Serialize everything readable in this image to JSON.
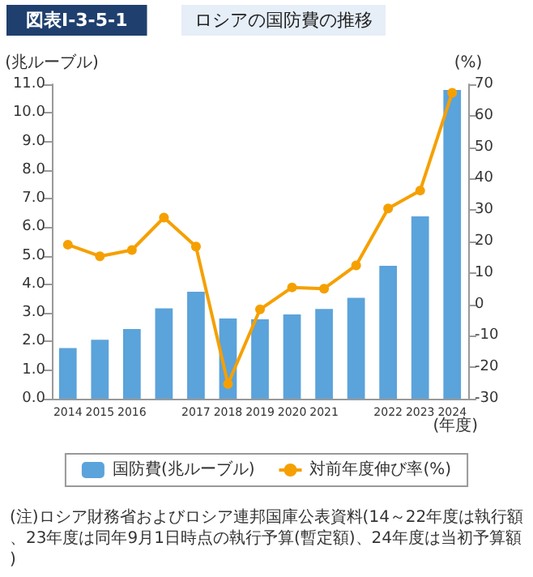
{
  "chart_data": {
    "type": "bar",
    "title": "図表Ⅰ-3-5-1",
    "subtitle": "ロシアの国防費の推移",
    "categories": [
      "2014",
      "2015",
      "2016",
      null,
      "2017",
      "2018",
      "2019",
      "2020",
      "2021",
      null,
      "2022",
      "2023",
      "2024"
    ],
    "xlabel": "(年度)",
    "ylabel": "(兆ルーブル)",
    "y2label": "(%)",
    "series": [
      {
        "name": "国防費(兆ルーブル)",
        "color": "#5ba3db",
        "values": [
          1.77,
          2.06,
          2.44,
          3.16,
          3.74,
          2.81,
          2.78,
          2.95,
          3.14,
          3.53,
          4.65,
          6.38,
          10.8
        ]
      },
      {
        "name": "対前年度伸び率(%)",
        "type": "line",
        "axis": "y2",
        "color": "#f5a000",
        "marker": "circle",
        "values": [
          19,
          15.3,
          17.3,
          27.6,
          18.4,
          -25.3,
          -1.6,
          5.4,
          5.0,
          12.4,
          30.5,
          36.2,
          67.3
        ]
      }
    ],
    "ylim": [
      0,
      11
    ],
    "yticks": [
      {
        "value": 0,
        "label": "0.0"
      },
      {
        "value": 1,
        "label": "1.0"
      },
      {
        "value": 2,
        "label": "2.0"
      },
      {
        "value": 3,
        "label": "3.0"
      },
      {
        "value": 4,
        "label": "4.0"
      },
      {
        "value": 5,
        "label": "5.0"
      },
      {
        "value": 6,
        "label": "6.0"
      },
      {
        "value": 7,
        "label": "7.0"
      },
      {
        "value": 8,
        "label": "8.0"
      },
      {
        "value": 9,
        "label": "9.0"
      },
      {
        "value": 10,
        "label": "10.0"
      },
      {
        "value": 11,
        "label": "11.0"
      }
    ],
    "y2lim": [
      -30,
      70
    ],
    "y2ticks": [
      -30,
      -20,
      -10,
      0,
      10,
      20,
      30,
      40,
      50,
      60,
      70
    ],
    "grid": false,
    "legend": "bottom",
    "annotations": [
      "(注)ロシア財務省およびロシア連邦国庫公表資料(14～22年度は執行額、23年度は同年9月1日時点の執行予算(暫定額)、24年度は当初予算額)"
    ]
  }
}
